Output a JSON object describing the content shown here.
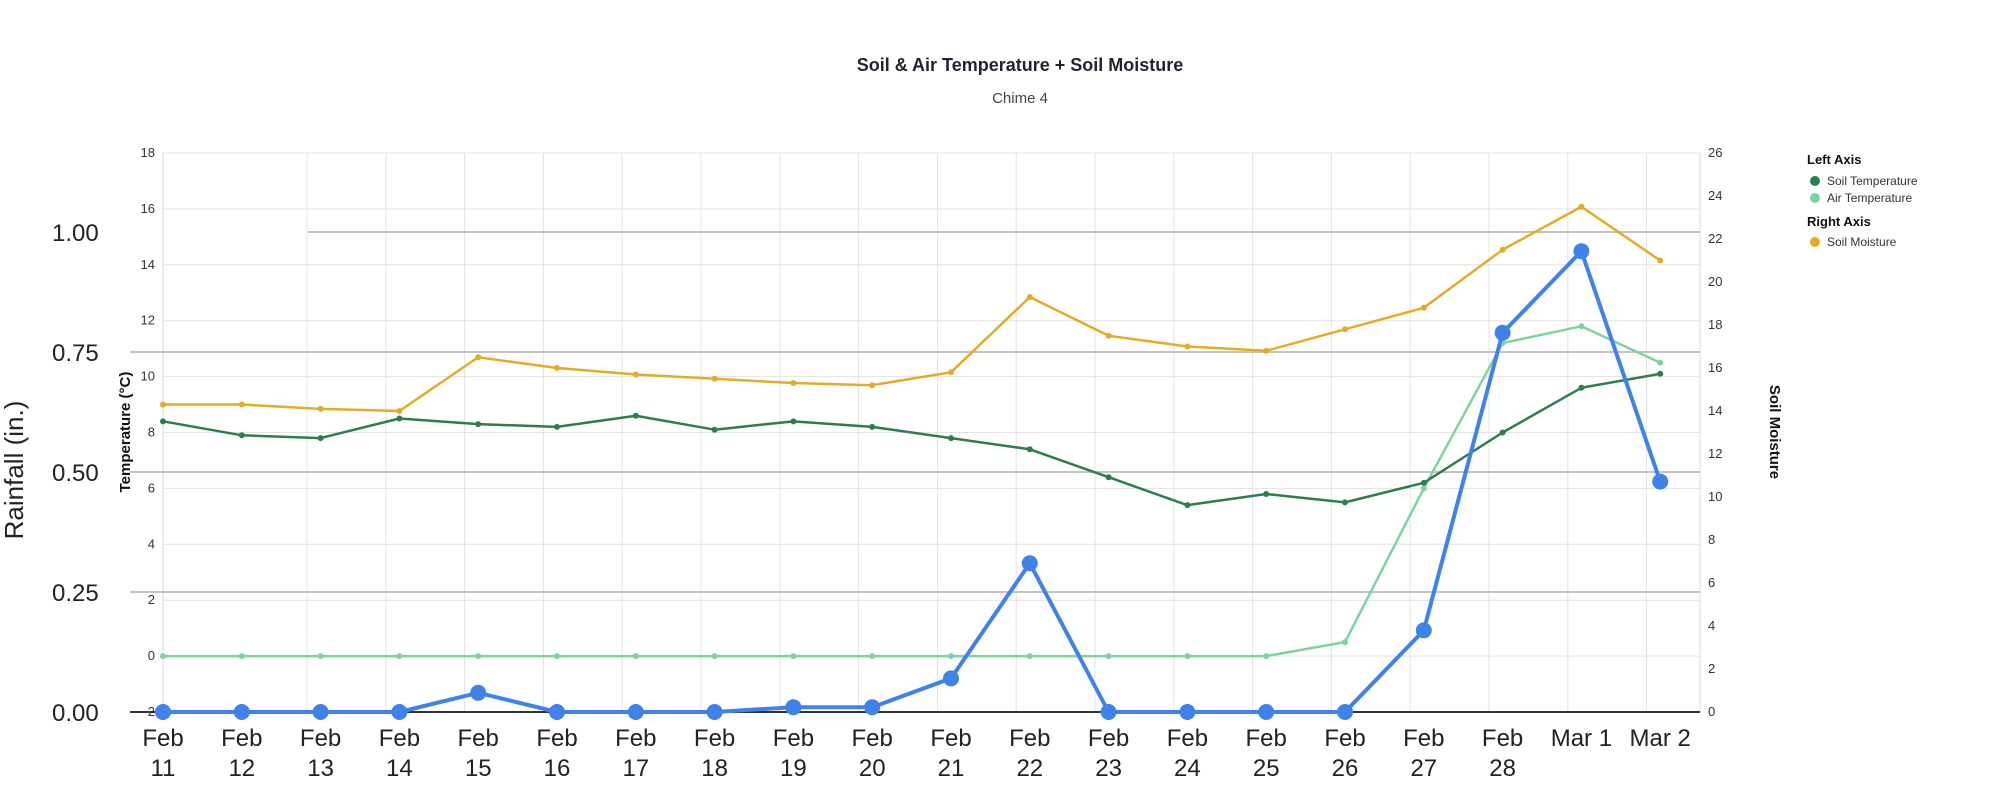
{
  "chart_data": {
    "type": "line",
    "title": "Soil & Air Temperature + Soil Moisture",
    "subtitle": "Chime 4",
    "y_left_label": "Temperature (°C)",
    "y_right_label": "Soil Moisture",
    "rain_label": "Rainfall (in.)",
    "y_left_range": [
      -2,
      18
    ],
    "y_left_ticks": [
      "18",
      "16",
      "14",
      "12",
      "10",
      "8",
      "6",
      "4",
      "2",
      "0",
      "-2"
    ],
    "y_right_range": [
      0,
      26
    ],
    "y_right_ticks": [
      "26",
      "24",
      "22",
      "20",
      "18",
      "16",
      "14",
      "12",
      "10",
      "8",
      "6",
      "4",
      "2",
      "0"
    ],
    "rain_range": [
      0,
      1.2
    ],
    "rain_ticks": [
      "1.00",
      "0.75",
      "0.50",
      "0.25",
      "0.00"
    ],
    "x_ticks": [
      [
        "Feb",
        "11"
      ],
      [
        "Feb",
        "12"
      ],
      [
        "Feb",
        "13"
      ],
      [
        "Feb",
        "14"
      ],
      [
        "Feb",
        "15"
      ],
      [
        "Feb",
        "16"
      ],
      [
        "Feb",
        "17"
      ],
      [
        "Feb",
        "18"
      ],
      [
        "Feb",
        "19"
      ],
      [
        "Feb",
        "20"
      ],
      [
        "Feb",
        "21"
      ],
      [
        "Feb",
        "22"
      ],
      [
        "Feb",
        "23"
      ],
      [
        "Feb",
        "24"
      ],
      [
        "Feb",
        "25"
      ],
      [
        "Feb",
        "26"
      ],
      [
        "Feb",
        "27"
      ],
      [
        "Feb",
        "28"
      ],
      [
        "Mar 1"
      ],
      [
        "Mar 2"
      ]
    ],
    "grid": true,
    "legend_position": "right",
    "legend": {
      "left_axis_label": "Left Axis",
      "right_axis_label": "Right Axis"
    },
    "series": [
      {
        "name": "Soil Temperature",
        "axis": "left",
        "color": "#2e7d4f",
        "x": [
          "Feb 11",
          "Feb 12",
          "Feb 13",
          "Feb 14",
          "Feb 15",
          "Feb 16",
          "Feb 17",
          "Feb 18",
          "Feb 19",
          "Feb 20",
          "Feb 21",
          "Feb 22",
          "Feb 23",
          "Feb 24",
          "Feb 25",
          "Feb 26",
          "Feb 27",
          "Feb 28",
          "Mar 1",
          "Mar 2"
        ],
        "values": [
          8.4,
          7.9,
          7.8,
          8.5,
          8.3,
          8.2,
          8.6,
          8.1,
          8.4,
          8.2,
          7.8,
          7.4,
          6.4,
          5.4,
          5.8,
          5.5,
          6.2,
          8.0,
          9.6,
          10.1
        ]
      },
      {
        "name": "Air Temperature",
        "axis": "left",
        "color": "#7fd3a0",
        "x": [
          "Feb 11",
          "Feb 12",
          "Feb 13",
          "Feb 14",
          "Feb 15",
          "Feb 16",
          "Feb 17",
          "Feb 18",
          "Feb 19",
          "Feb 20",
          "Feb 21",
          "Feb 22",
          "Feb 23",
          "Feb 24",
          "Feb 25",
          "Feb 26",
          "Feb 27",
          "Feb 28",
          "Mar 1",
          "Mar 2"
        ],
        "values": [
          0,
          0,
          0,
          0,
          0,
          0,
          0,
          0,
          0,
          0,
          0,
          0,
          0,
          0,
          0,
          0.5,
          6.0,
          11.2,
          11.8,
          10.5
        ]
      },
      {
        "name": "Soil Moisture",
        "axis": "right",
        "color": "#e3ac27",
        "x": [
          "Feb 11",
          "Feb 12",
          "Feb 13",
          "Feb 14",
          "Feb 15",
          "Feb 16",
          "Feb 17",
          "Feb 18",
          "Feb 19",
          "Feb 20",
          "Feb 21",
          "Feb 22",
          "Feb 23",
          "Feb 24",
          "Feb 25",
          "Feb 26",
          "Feb 27",
          "Feb 28",
          "Mar 1",
          "Mar 2"
        ],
        "values": [
          14.3,
          14.3,
          14.1,
          14.0,
          16.5,
          16.0,
          15.7,
          15.5,
          15.3,
          15.2,
          15.8,
          19.3,
          17.5,
          17.0,
          16.8,
          17.8,
          18.8,
          21.5,
          23.5,
          21.0
        ]
      },
      {
        "name": "Rainfall",
        "axis": "rain",
        "color": "#3f82e8",
        "x": [
          "Feb 11",
          "Feb 12",
          "Feb 13",
          "Feb 14",
          "Feb 15",
          "Feb 16",
          "Feb 17",
          "Feb 18",
          "Feb 19",
          "Feb 20",
          "Feb 21",
          "Feb 22",
          "Feb 23",
          "Feb 24",
          "Feb 25",
          "Feb 26",
          "Feb 27",
          "Feb 28",
          "Mar 1",
          "Mar 2"
        ],
        "values": [
          0.0,
          0.0,
          0.0,
          0.0,
          0.04,
          0.0,
          0.0,
          0.0,
          0.01,
          0.01,
          0.07,
          0.31,
          0.0,
          0.0,
          0.0,
          0.0,
          0.17,
          0.79,
          0.96,
          0.48
        ]
      }
    ]
  }
}
